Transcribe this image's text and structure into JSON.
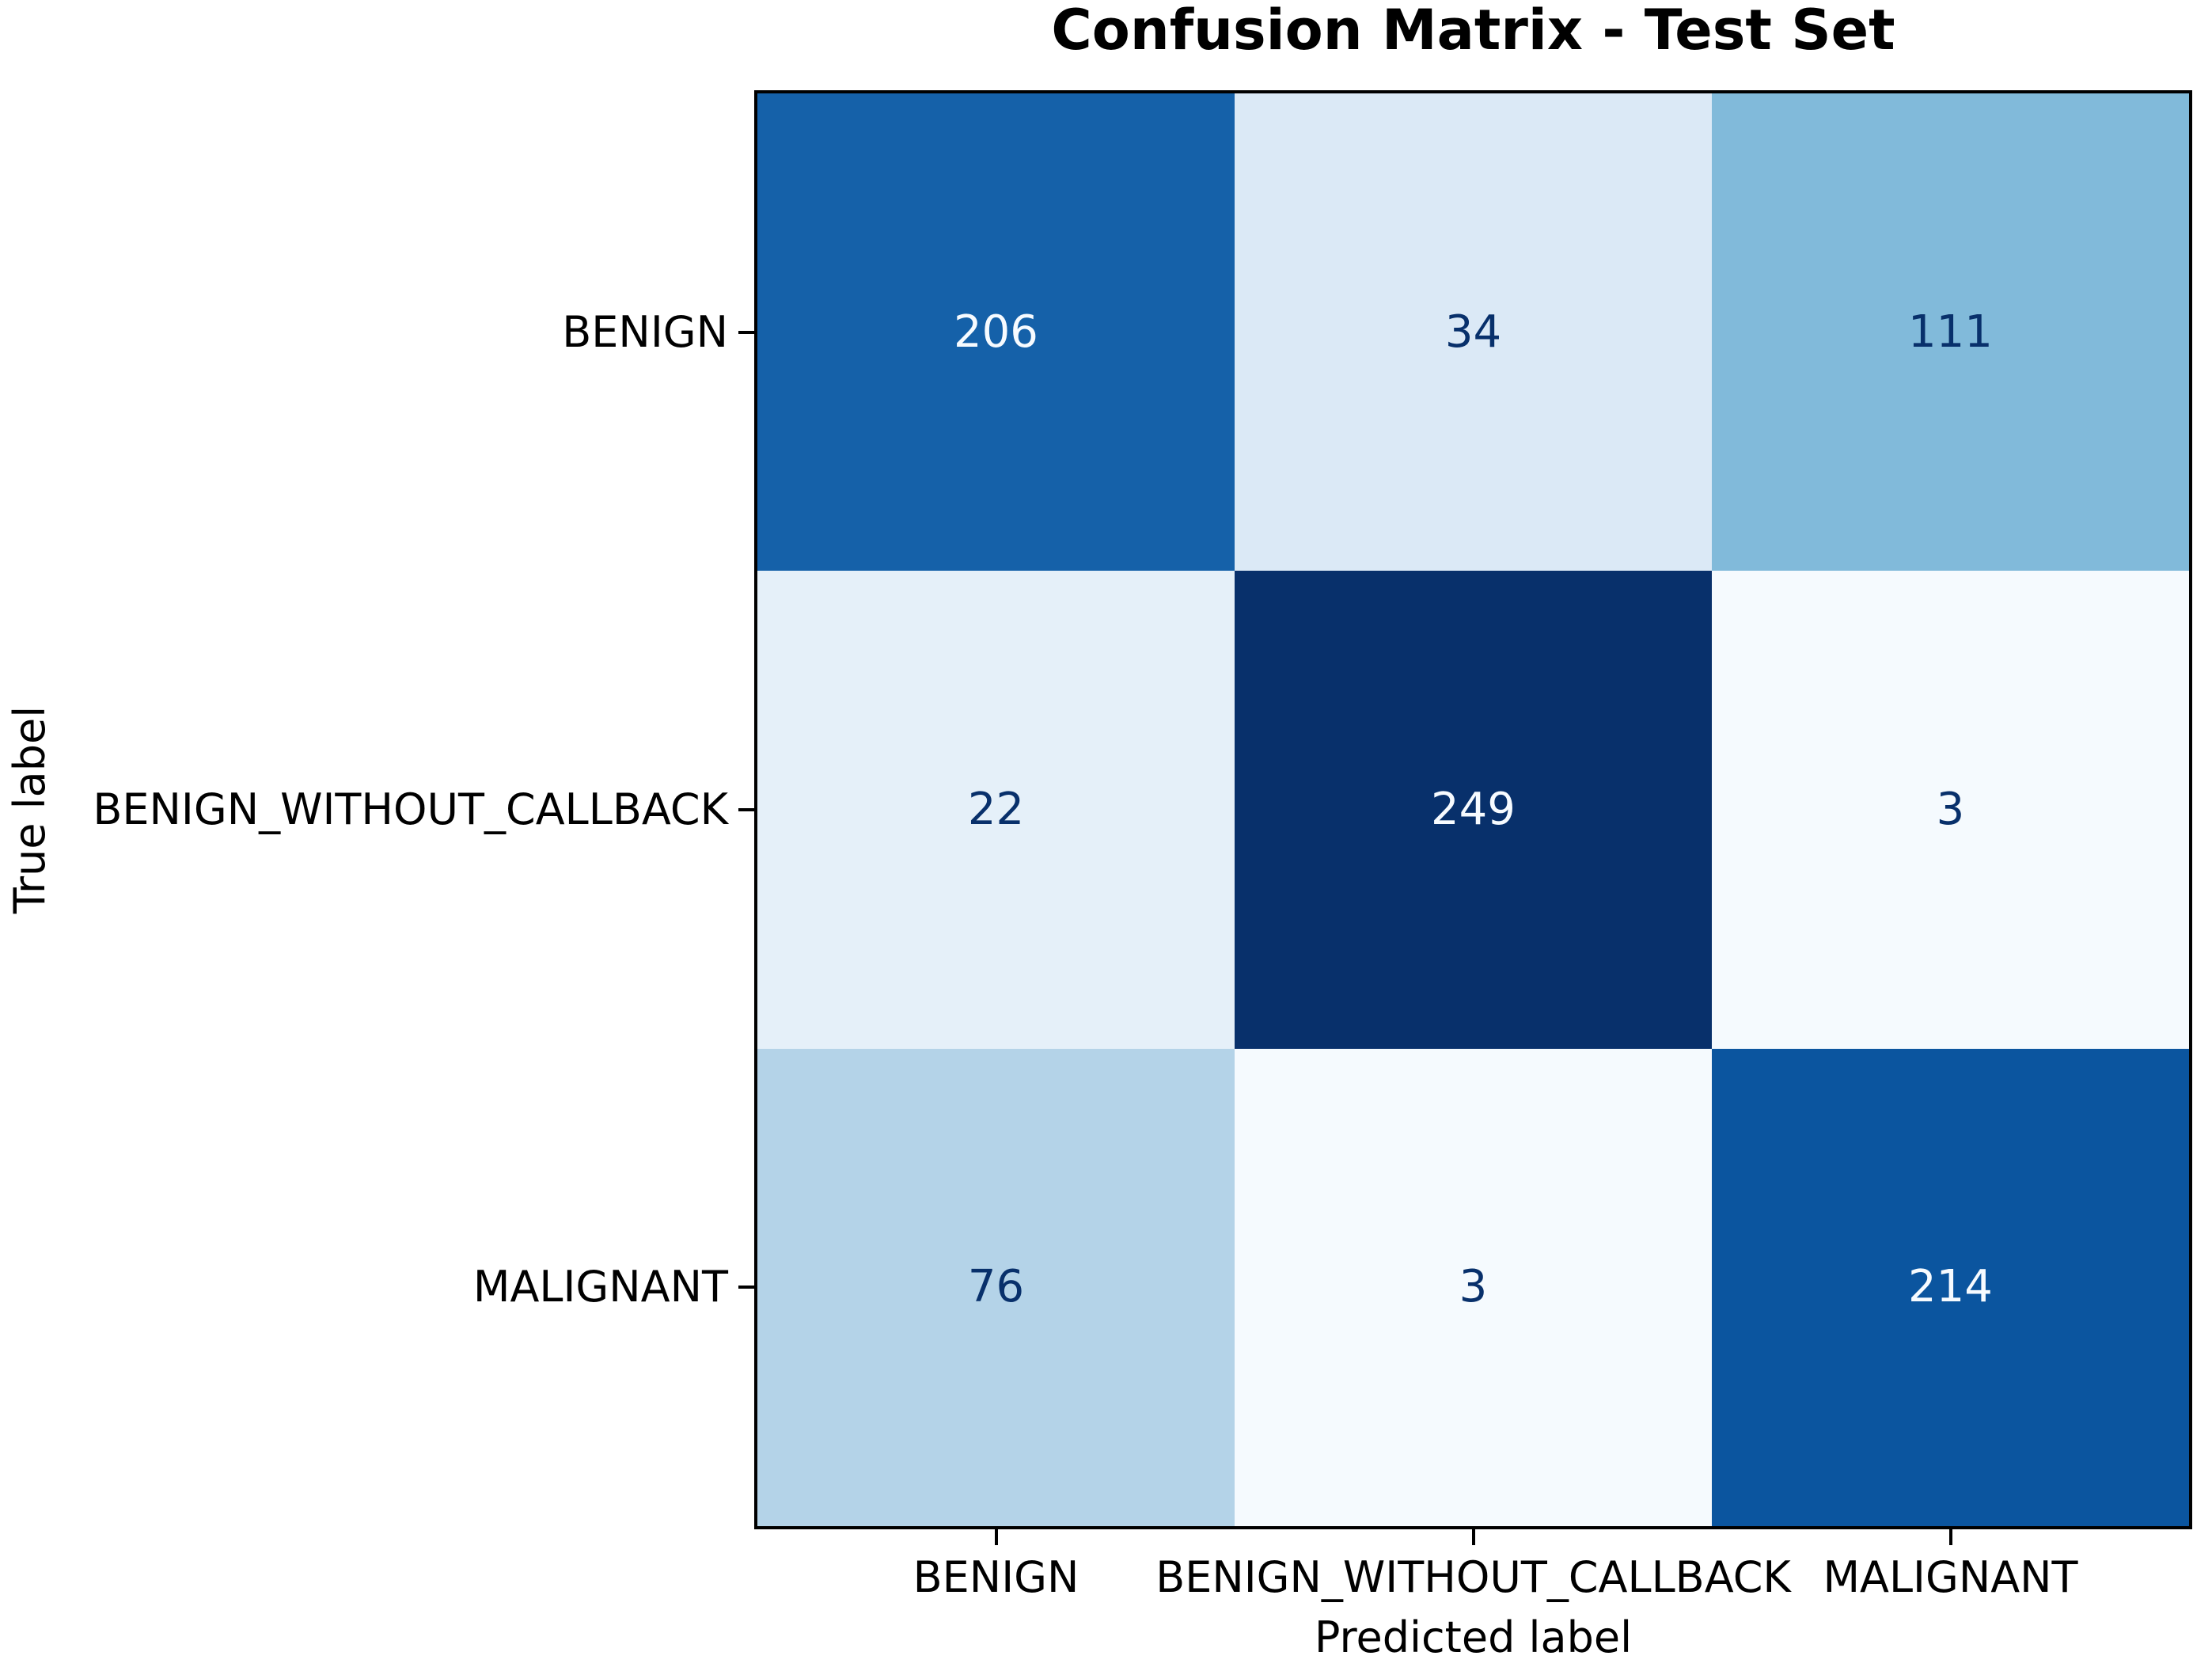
{
  "chart_data": {
    "type": "heatmap",
    "title": "Confusion Matrix - Test Set",
    "xlabel": "Predicted label",
    "ylabel": "True label",
    "x_categories": [
      "BENIGN",
      "BENIGN_WITHOUT_CALLBACK",
      "MALIGNANT"
    ],
    "y_categories": [
      "BENIGN",
      "BENIGN_WITHOUT_CALLBACK",
      "MALIGNANT"
    ],
    "matrix": [
      [
        206,
        34,
        111
      ],
      [
        22,
        249,
        3
      ],
      [
        76,
        3,
        214
      ]
    ],
    "colormap": "Blues",
    "value_range": [
      3,
      249
    ],
    "legend": "none",
    "grid": false
  },
  "styles": {
    "background": "#ffffff",
    "spine_color": "#000000",
    "tick_color": "#000000",
    "title_color": "#000000",
    "label_color": "#000000",
    "cell_colors": [
      [
        "#1561a9",
        "#dbe9f6",
        "#81bada"
      ],
      [
        "#e5f0f9",
        "#08306b",
        "#f5fafe"
      ],
      [
        "#b4d3e8",
        "#f5fafe",
        "#0b559f"
      ]
    ],
    "cell_text_colors": [
      [
        "#f7fbff",
        "#08306b",
        "#08306b"
      ],
      [
        "#08306b",
        "#f7fbff",
        "#08306b"
      ],
      [
        "#08306b",
        "#08306b",
        "#f7fbff"
      ]
    ]
  }
}
